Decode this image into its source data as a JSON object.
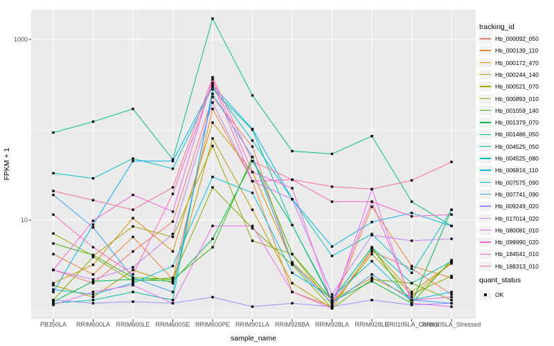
{
  "chart_data": {
    "type": "line",
    "title": "",
    "xlabel": "sample_name",
    "ylabel": "FPKM + 1",
    "y_scale": "log10",
    "ylim": [
      1,
      2000
    ],
    "y_axis_ticks": [
      {
        "label": "1000",
        "value": 1000
      },
      {
        "label": "10",
        "value": 10
      }
    ],
    "y_minor_gridlines": [
      100,
      1
    ],
    "panel_bg": "#EBEBEB",
    "gridline_color": "#FFFFFF",
    "axis_text_color": "#4D4D4D",
    "point_color": "#000000",
    "point_shape": "filled-square",
    "legend_position": "right",
    "legend_title": "tracking_id",
    "categories": [
      "PB350LA",
      "RRIM600LA",
      "RRIM600LE",
      "RRIM600SE",
      "RRIM600PE",
      "RRIM901LA",
      "RRIM928BA",
      "RRIM928LA",
      "RRIM928LE",
      "RRII105LA_Control",
      "RRII105LA_Stressed"
    ],
    "series": [
      {
        "name": "Hb_000092_050",
        "color": "#F8766D",
        "values": [
          2.8,
          2.0,
          4.5,
          9.6,
          230,
          65,
          3.3,
          1.2,
          4.5,
          2.9,
          1.5
        ]
      },
      {
        "name": "Hb_000139_110",
        "color": "#EA8331",
        "values": [
          4.2,
          2.5,
          6.5,
          2.2,
          170,
          27,
          1.6,
          1.1,
          14,
          3.1,
          2.3
        ]
      },
      {
        "name": "Hb_000172_470",
        "color": "#D89000",
        "values": [
          2.0,
          3.2,
          10.5,
          4.5,
          120,
          34,
          3.4,
          1.3,
          2.3,
          1.4,
          3.4
        ]
      },
      {
        "name": "Hb_000244_140",
        "color": "#C09B00",
        "values": [
          1.9,
          1.4,
          2.8,
          2.0,
          80,
          13,
          2.0,
          1.05,
          4.8,
          1.6,
          3.3
        ]
      },
      {
        "name": "Hb_000521_070",
        "color": "#A3A500",
        "values": [
          7.1,
          4.0,
          8.5,
          6.5,
          66,
          5.9,
          4.2,
          1.15,
          4.2,
          1.5,
          2.4
        ]
      },
      {
        "name": "Hb_000893_010",
        "color": "#7CAE00",
        "values": [
          1.3,
          3.9,
          2.1,
          2.3,
          23,
          8.1,
          3.2,
          1.05,
          2.2,
          2.0,
          1.3
        ]
      },
      {
        "name": "Hb_001059_140",
        "color": "#39B600",
        "values": [
          5.5,
          4.1,
          2.3,
          2.2,
          5.0,
          50,
          4.2,
          1.3,
          5.0,
          1.2,
          3.6
        ]
      },
      {
        "name": "Hb_001379_070",
        "color": "#00BB4E",
        "values": [
          1.25,
          2.1,
          2.2,
          2.1,
          6.2,
          45,
          8.8,
          1.25,
          2.1,
          1.2,
          13
        ]
      },
      {
        "name": "Hb_001486_050",
        "color": "#00C087",
        "values": [
          93,
          123,
          170,
          47,
          1700,
          240,
          58,
          54,
          85,
          16,
          8.6
        ]
      },
      {
        "name": "Hb_004525_050",
        "color": "#00C1A3",
        "values": [
          1.2,
          1.3,
          1.6,
          1.3,
          280,
          100,
          8.8,
          1.3,
          5.0,
          2.0,
          3.5
        ]
      },
      {
        "name": "Hb_004525_080",
        "color": "#00BFC4",
        "values": [
          33,
          29,
          48,
          37,
          300,
          76,
          17,
          4.0,
          7.0,
          2.6,
          13
        ]
      },
      {
        "name": "Hb_006816_110",
        "color": "#00BAE0",
        "values": [
          1.7,
          1.5,
          2.0,
          3.1,
          30,
          20,
          2.6,
          1.4,
          3.5,
          1.3,
          1.6
        ]
      },
      {
        "name": "Hb_007575_090",
        "color": "#00B0F6",
        "values": [
          1.6,
          8.9,
          45,
          45,
          310,
          102,
          17,
          5.1,
          9.5,
          12,
          8.6
        ]
      },
      {
        "name": "Hb_007741_090",
        "color": "#35A2FF",
        "values": [
          19,
          8.3,
          2.3,
          1.6,
          250,
          50,
          3.3,
          1.2,
          2.5,
          1.3,
          1.2
        ]
      },
      {
        "name": "Hb_009249_020",
        "color": "#9590FF",
        "values": [
          1.3,
          1.2,
          1.25,
          1.2,
          1.4,
          1.1,
          1.2,
          1.1,
          1.3,
          1.15,
          1.2
        ]
      },
      {
        "name": "Hb_017014_020",
        "color": "#C77CFF",
        "values": [
          2.8,
          2.2,
          3.0,
          7.0,
          200,
          27,
          17,
          1.5,
          6.8,
          5.9,
          6.2
        ]
      },
      {
        "name": "Hb_080081_010",
        "color": "#E76BF3",
        "values": [
          1.15,
          1.6,
          1.9,
          1.2,
          8.6,
          8.6,
          1.6,
          1.05,
          22,
          1.2,
          1.1
        ]
      },
      {
        "name": "Hb_099990_020",
        "color": "#FA62DB",
        "values": [
          2.8,
          9.8,
          19,
          12.4,
          360,
          34,
          22.5,
          1.2,
          16,
          1.3,
          1.4
        ]
      },
      {
        "name": "Hb_184541_010",
        "color": "#FF62BC",
        "values": [
          11.5,
          5.0,
          2.5,
          19.5,
          330,
          27,
          28,
          16,
          16,
          11,
          11.5
        ]
      },
      {
        "name": "Hb_188313_010",
        "color": "#FF6A98",
        "values": [
          21,
          16.6,
          13,
          23,
          380,
          45,
          28,
          23.4,
          22,
          27.5,
          44
        ]
      }
    ],
    "quant_legend": {
      "title": "quant_status",
      "items": [
        {
          "label": "OK",
          "marker": "black-square"
        }
      ]
    }
  }
}
